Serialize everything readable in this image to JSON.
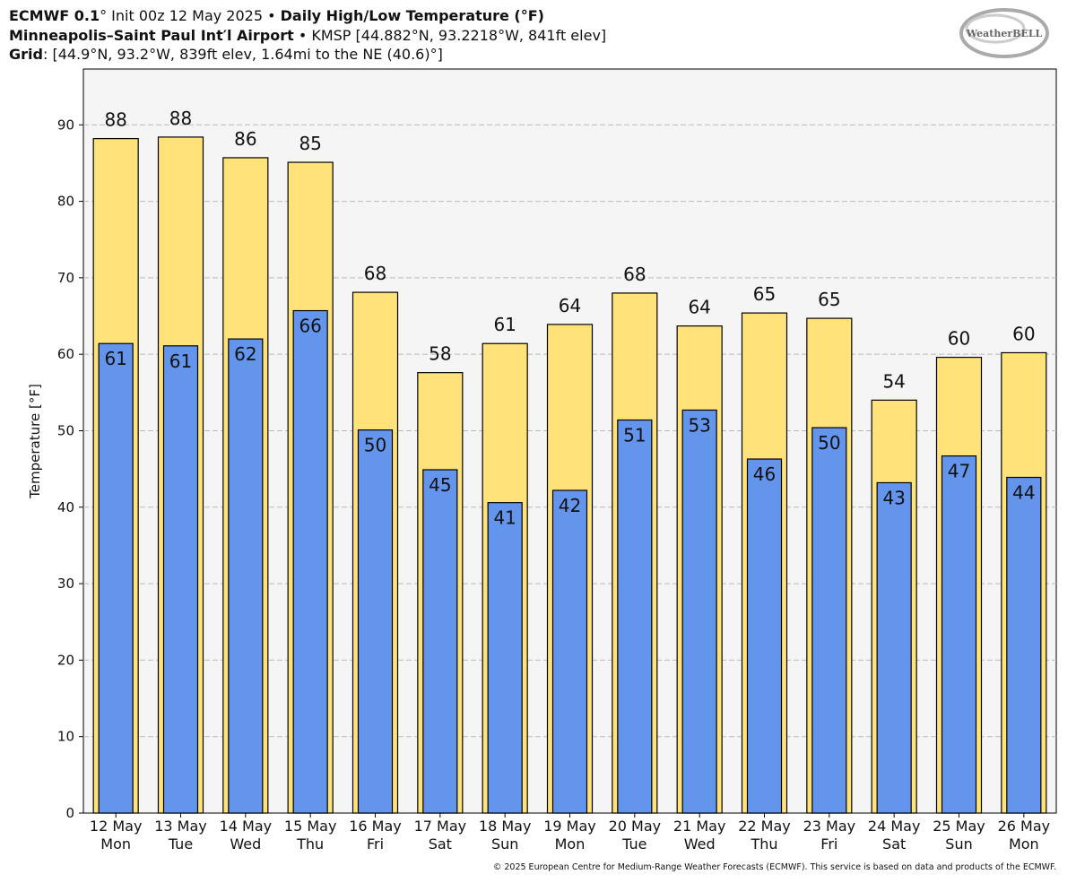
{
  "chart_data": {
    "type": "bar",
    "title": [
      "ECMWF 0.1",
      "° Init 00z 12 May 2025 • ",
      "Daily High/Low Temperature (°F)"
    ],
    "subtitle": [
      "Minneapolis–Saint Paul Int′l Airport",
      " • KMSP [44.882°N, 93.2218°W, 841ft elev]"
    ],
    "grid_info": [
      "Grid",
      ": [44.9°N, 93.2°W, 839ft elev, 1.64mi to the NE (40.6)°]"
    ],
    "logo": "WeatherBELL",
    "y_label": "Temperature [°F]",
    "footer": "© 2025 European Centre for Medium-Range Weather Forecasts (ECMWF). This service is based on data and products of the ECMWF.",
    "categories": [
      [
        "12 May",
        "Mon"
      ],
      [
        "13 May",
        "Tue"
      ],
      [
        "14 May",
        "Wed"
      ],
      [
        "15 May",
        "Thu"
      ],
      [
        "16 May",
        "Fri"
      ],
      [
        "17 May",
        "Sat"
      ],
      [
        "18 May",
        "Sun"
      ],
      [
        "19 May",
        "Mon"
      ],
      [
        "20 May",
        "Tue"
      ],
      [
        "21 May",
        "Wed"
      ],
      [
        "22 May",
        "Thu"
      ],
      [
        "23 May",
        "Fri"
      ],
      [
        "24 May",
        "Sat"
      ],
      [
        "25 May",
        "Sun"
      ],
      [
        "26 May",
        "Mon"
      ]
    ],
    "series": [
      {
        "color": "#ffe27a",
        "values": [
          88.2,
          88.4,
          85.7,
          85.1,
          68.1,
          57.6,
          61.4,
          63.9,
          68.0,
          63.7,
          65.4,
          64.7,
          54.0,
          59.6,
          60.2
        ],
        "value_labels": [
          "88",
          "88",
          "86",
          "85",
          "68",
          "58",
          "61",
          "64",
          "68",
          "64",
          "65",
          "65",
          "54",
          "60",
          "60"
        ]
      },
      {
        "color": "#6495ed",
        "values": [
          61.4,
          61.1,
          62.0,
          65.7,
          50.1,
          44.9,
          40.6,
          42.2,
          51.4,
          52.7,
          46.3,
          50.4,
          43.2,
          46.7,
          43.9
        ],
        "value_labels": [
          "61",
          "61",
          "62",
          "66",
          "50",
          "45",
          "41",
          "42",
          "51",
          "53",
          "46",
          "50",
          "43",
          "47",
          "44"
        ]
      }
    ],
    "ylim": [
      0,
      97.3
    ],
    "yticks": [
      0,
      10,
      20,
      30,
      40,
      50,
      60,
      70,
      80,
      90
    ],
    "grid": true
  }
}
